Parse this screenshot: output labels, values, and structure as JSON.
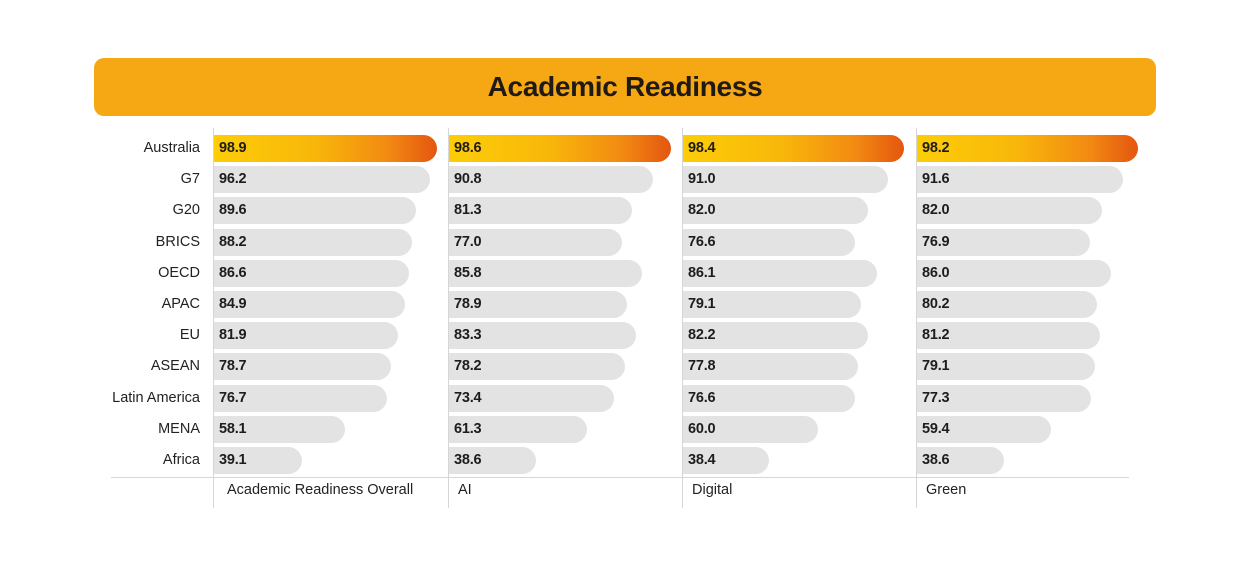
{
  "title": "Academic Readiness",
  "chart_data": {
    "type": "bar",
    "orientation": "horizontal",
    "title": "Academic Readiness",
    "categories": [
      "Australia",
      "G7",
      "G20",
      "BRICS",
      "OECD",
      "APAC",
      "EU",
      "ASEAN",
      "Latin America",
      "MENA",
      "Africa"
    ],
    "xlim": [
      0,
      100
    ],
    "grid": false,
    "highlight_category": "Australia",
    "colors": {
      "bar": "#e4e3e4",
      "highlight_start": "#fdcd07",
      "highlight_end": "#e4560f",
      "banner": "#f6a714"
    },
    "series": [
      {
        "name": "Academic Readiness Overall",
        "values": [
          98.9,
          96.2,
          89.6,
          88.2,
          86.6,
          84.9,
          81.9,
          78.7,
          76.7,
          58.1,
          39.1
        ]
      },
      {
        "name": "AI",
        "values": [
          98.6,
          90.8,
          81.3,
          77.0,
          85.8,
          78.9,
          83.3,
          78.2,
          73.4,
          61.3,
          38.6
        ]
      },
      {
        "name": "Digital",
        "values": [
          98.4,
          91.0,
          82.0,
          76.6,
          86.1,
          79.1,
          82.2,
          77.8,
          76.6,
          60.0,
          38.4
        ]
      },
      {
        "name": "Green",
        "values": [
          98.2,
          91.6,
          82.0,
          76.9,
          86.0,
          80.2,
          81.2,
          79.1,
          77.3,
          59.4,
          38.6
        ]
      }
    ]
  }
}
